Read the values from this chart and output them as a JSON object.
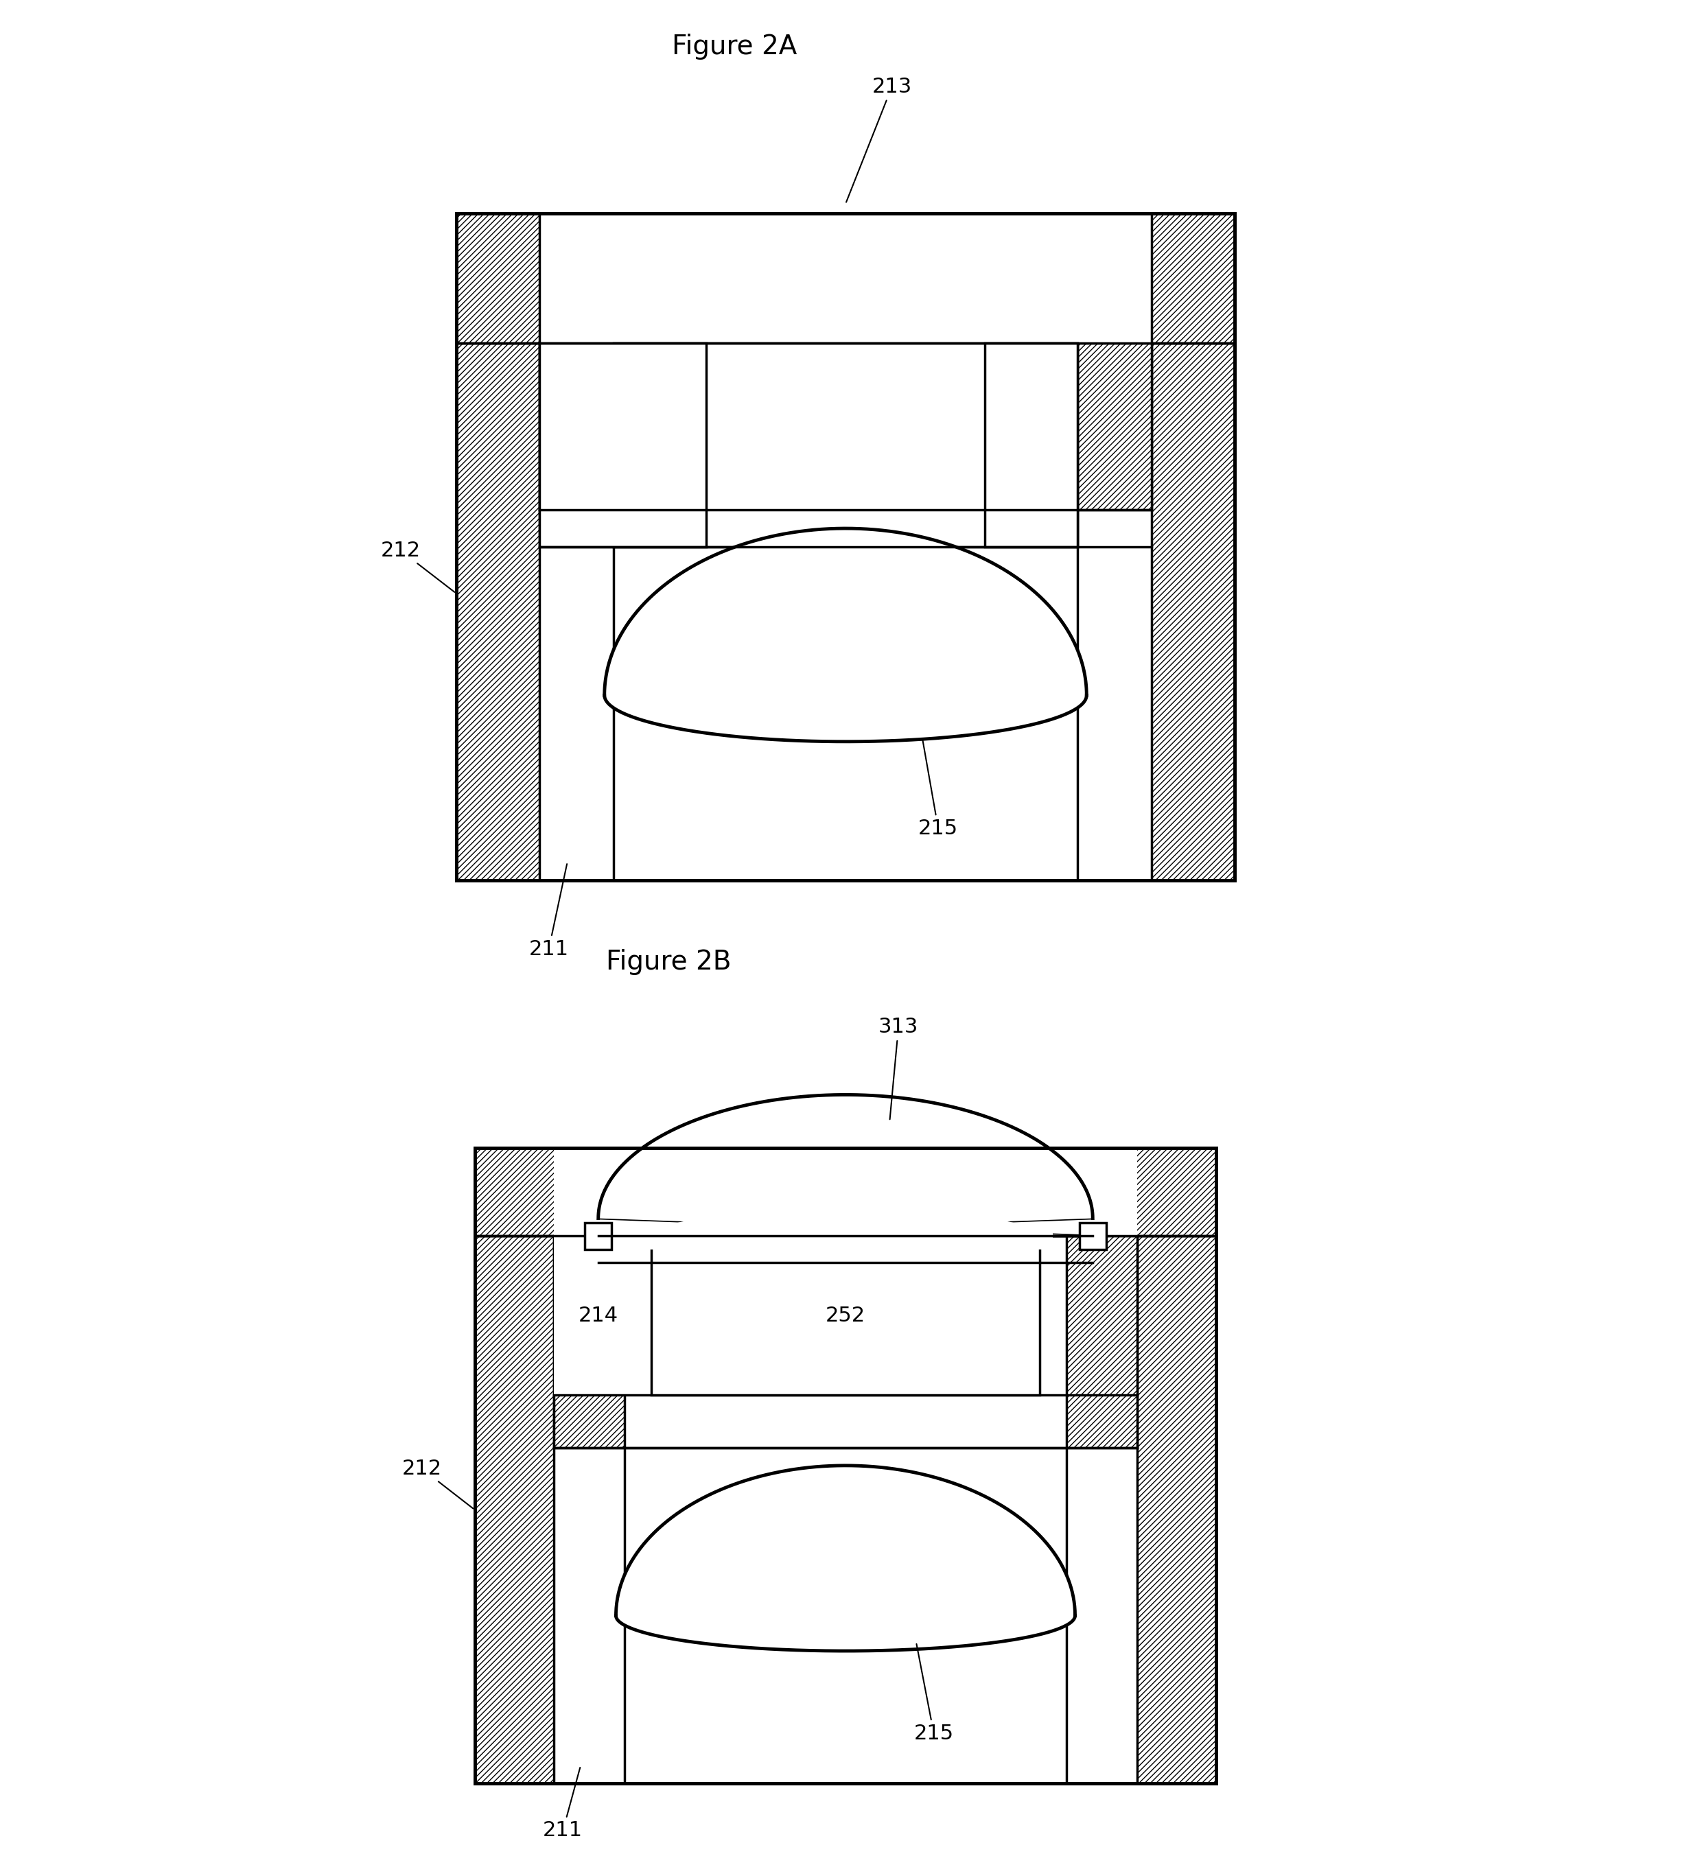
{
  "title_2a": "Figure 2A",
  "title_2b": "Figure 2B",
  "label_211": "211",
  "label_212": "212",
  "label_213": "213",
  "label_214": "214",
  "label_215": "215",
  "label_252": "252",
  "label_313": "313",
  "bg_color": "#ffffff",
  "line_color": "#000000",
  "hatch_color": "#000000",
  "hatch_pattern": "////",
  "fig_width": 24.64,
  "fig_height": 27.02
}
